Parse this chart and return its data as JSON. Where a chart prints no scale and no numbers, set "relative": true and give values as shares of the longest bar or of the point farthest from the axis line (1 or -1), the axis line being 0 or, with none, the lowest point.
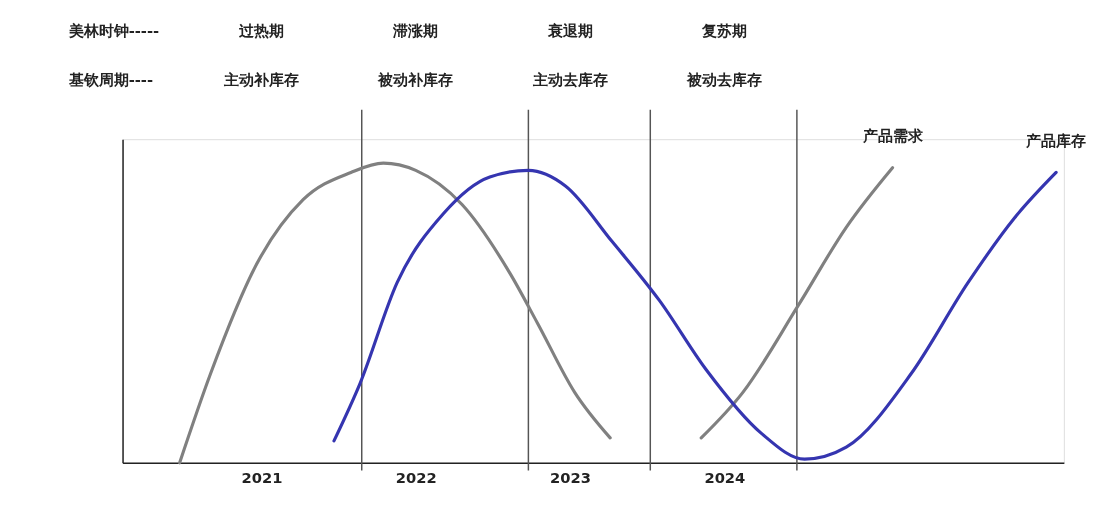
{
  "chart_data": {
    "type": "line",
    "relative": true,
    "legend": false,
    "grid": false,
    "marker": "none",
    "line_style": "solid",
    "xlim": [
      2020.1,
      2026.2
    ],
    "xticks": [
      2021,
      2022,
      2023,
      2024
    ],
    "tick_labels": "x",
    "series": [
      {
        "name": "产品需求",
        "color": "#808080",
        "x": [
          2020.47,
          2020.67,
          2020.97,
          2021.27,
          2021.58,
          2021.79,
          2022.0,
          2022.3,
          2022.61,
          2022.79,
          2023.03,
          2023.26,
          2023.55,
          2023.85,
          2024.12,
          2024.48,
          2024.79,
          2025.09
        ],
        "values": [
          0,
          0.297,
          0.664,
          0.878,
          0.969,
          1,
          0.976,
          0.862,
          0.633,
          0.465,
          0.235,
          0.083,
          null,
          0.083,
          0.235,
          0.526,
          0.786,
          0.985
        ]
      },
      {
        "name": "产品库存",
        "color": "#3535b0",
        "x": [
          2021.47,
          2021.64,
          2021.88,
          2022.18,
          2022.48,
          2022.73,
          2022.97,
          2023.27,
          2023.58,
          2023.88,
          2024.24,
          2024.52,
          2024.79,
          2025.21,
          2025.58,
          2025.88,
          2026.15
        ],
        "values": [
          0.073,
          0.266,
          0.602,
          0.832,
          0.954,
          0.976,
          0.924,
          0.74,
          0.541,
          0.312,
          0.098,
          0.012,
          0.052,
          0.297,
          0.602,
          0.817,
          0.969
        ]
      }
    ],
    "ref_lines": [
      {
        "axis": "x",
        "value": 2021.65,
        "color": "#555555"
      },
      {
        "axis": "x",
        "value": 2022.73,
        "color": "#555555"
      },
      {
        "axis": "x",
        "value": 2023.52,
        "color": "#555555"
      },
      {
        "axis": "x",
        "value": 2024.47,
        "color": "#555555"
      }
    ],
    "annotations": [
      "美林时钟-----",
      "过热期",
      "滞涨期",
      "衰退期",
      "复苏期",
      "基钦周期----",
      "主动补库存",
      "被动补库存",
      "主动去库存",
      "被动去库存"
    ]
  }
}
